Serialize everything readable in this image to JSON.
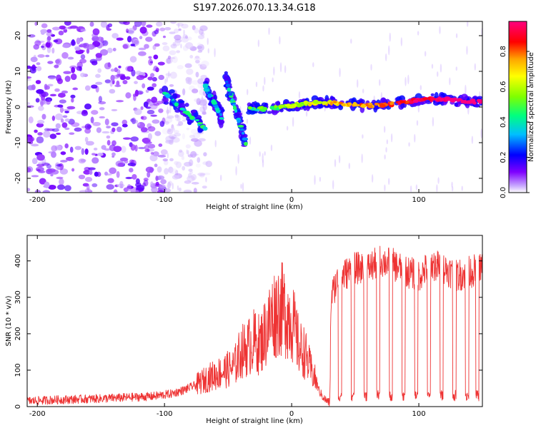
{
  "figure_title": "S197.2026.070.13.34.G18",
  "chart_data": [
    {
      "type": "heatmap",
      "title": "S197.2026.070.13.34.G18",
      "xlabel": "Height of straight line (km)",
      "ylabel": "Frequency (Hz)",
      "xlim": [
        -208,
        150
      ],
      "ylim": [
        -24,
        24
      ],
      "xticks": [
        -200,
        -100,
        0,
        100
      ],
      "yticks": [
        -20,
        -10,
        0,
        10,
        20
      ],
      "colorbar": {
        "label": "Normalized spectral amplitude",
        "range": [
          0,
          0.97
        ],
        "ticks": [
          0.0,
          0.2,
          0.4,
          0.6,
          0.8
        ],
        "colormap": [
          "#ffffff",
          "#c8a8ff",
          "#7f00ff",
          "#0000ff",
          "#00bfff",
          "#00ff7f",
          "#7fff00",
          "#ffff00",
          "#ffa500",
          "#ff0000",
          "#ff0080"
        ]
      },
      "ridge": {
        "noise_region_km": [
          -208,
          -100
        ],
        "fragments": [
          {
            "x_start": -100,
            "x_end": -68,
            "f_start": 4,
            "f_end": -6
          },
          {
            "x_start": -68,
            "x_end": -55,
            "f_start": 6,
            "f_end": -3
          },
          {
            "x_start": -52,
            "x_end": -36,
            "f_start": 8,
            "f_end": -10
          },
          {
            "x_start": -35,
            "x_end": 150,
            "f_start": 0,
            "f_end": 2
          }
        ],
        "peak_amplitude": 0.97
      }
    },
    {
      "type": "line",
      "xlabel": "Height of straight line (km)",
      "ylabel": "SNR (10 * v/v)",
      "xlim": [
        -208,
        150
      ],
      "ylim": [
        0,
        470
      ],
      "xticks": [
        -200,
        -100,
        0,
        100
      ],
      "yticks": [
        0,
        100,
        200,
        300,
        400
      ],
      "series": [
        {
          "name": "SNR",
          "color": "#ee3333",
          "x": [
            -208,
            -190,
            -170,
            -150,
            -130,
            -110,
            -95,
            -85,
            -75,
            -65,
            -55,
            -45,
            -40,
            -35,
            -30,
            -25,
            -20,
            -15,
            -10,
            -5,
            0,
            3,
            6,
            10,
            14,
            18,
            22,
            26,
            30,
            31,
            35,
            40,
            50,
            60,
            70,
            80,
            90,
            100,
            110,
            120,
            130,
            140,
            150
          ],
          "values": [
            15,
            18,
            20,
            22,
            25,
            28,
            35,
            45,
            60,
            80,
            95,
            110,
            150,
            160,
            180,
            170,
            210,
            250,
            270,
            260,
            240,
            200,
            160,
            150,
            110,
            80,
            40,
            20,
            10,
            300,
            340,
            360,
            380,
            380,
            400,
            390,
            370,
            360,
            390,
            380,
            360,
            370,
            380
          ]
        }
      ],
      "dropouts_x": [
        38,
        48,
        58,
        68,
        78,
        88,
        98,
        108,
        118,
        128,
        138,
        146
      ]
    }
  ]
}
